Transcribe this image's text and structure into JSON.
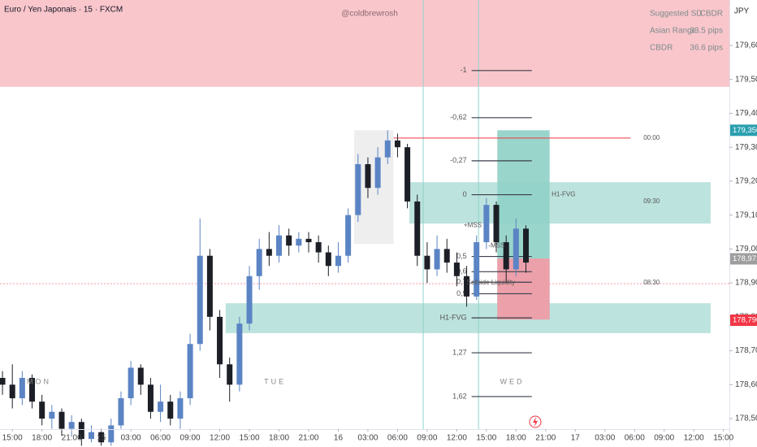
{
  "header": {
    "title": "Euro / Yen Japonais · 15 · FXCM",
    "watermark": "@coldbrewrosh",
    "currency": "JPY"
  },
  "info_table": [
    [
      "Suggested SD",
      "CBDR"
    ],
    [
      "Asian Range",
      "33.5 pips"
    ],
    [
      "CBDR",
      "36.6 pips"
    ]
  ],
  "chart_data": {
    "type": "candlestick",
    "up_color": "#5b84c4",
    "down_color": "#1c1f26",
    "x": [
      -1,
      0,
      1,
      2,
      3,
      4,
      5,
      6,
      7,
      8,
      9,
      10,
      11,
      12,
      13,
      14,
      15,
      16,
      17,
      18,
      19,
      20,
      21,
      22,
      23,
      24,
      25,
      26,
      27,
      28,
      29,
      30,
      31,
      32,
      33,
      34,
      35,
      36,
      37,
      38,
      39,
      40,
      41,
      42,
      43,
      44,
      45,
      46,
      47,
      48,
      49,
      50,
      51,
      52
    ],
    "open": [
      178.62,
      178.6,
      178.56,
      178.62,
      178.55,
      178.5,
      178.52,
      178.47,
      178.49,
      178.44,
      178.46,
      178.43,
      178.48,
      178.56,
      178.65,
      178.6,
      178.52,
      178.55,
      178.5,
      178.56,
      178.72,
      178.98,
      178.8,
      178.66,
      178.6,
      178.78,
      178.92,
      179.0,
      178.98,
      179.04,
      179.01,
      179.03,
      179.02,
      178.99,
      178.95,
      178.98,
      179.1,
      179.25,
      179.18,
      179.27,
      179.32,
      179.3,
      179.14,
      178.98,
      178.94,
      179.0,
      178.96,
      178.92,
      178.86,
      179.02,
      179.13,
      179.02,
      178.94,
      179.06
    ],
    "high": [
      178.64,
      178.66,
      178.64,
      178.63,
      178.57,
      178.54,
      178.53,
      178.51,
      178.5,
      178.48,
      178.47,
      178.5,
      178.58,
      178.67,
      178.66,
      178.62,
      178.6,
      178.57,
      178.58,
      178.75,
      179.09,
      179.0,
      178.82,
      178.68,
      178.8,
      178.95,
      179.03,
      179.05,
      179.07,
      179.06,
      179.05,
      179.05,
      179.04,
      179.01,
      179.02,
      179.12,
      179.28,
      179.27,
      179.3,
      179.35,
      179.34,
      179.31,
      179.16,
      179.02,
      179.04,
      179.03,
      178.99,
      178.95,
      179.04,
      179.15,
      179.14,
      179.04,
      179.09,
      179.07
    ],
    "low": [
      178.57,
      178.53,
      178.54,
      178.53,
      178.48,
      178.47,
      178.45,
      178.45,
      178.42,
      178.43,
      178.42,
      178.42,
      178.47,
      178.54,
      178.57,
      178.5,
      178.49,
      178.48,
      178.47,
      178.54,
      178.7,
      178.76,
      178.62,
      178.55,
      178.58,
      178.76,
      178.88,
      178.95,
      178.96,
      178.98,
      178.99,
      178.99,
      178.96,
      178.92,
      178.93,
      178.96,
      179.08,
      179.15,
      179.16,
      179.25,
      179.27,
      179.12,
      178.95,
      178.9,
      178.92,
      178.93,
      178.89,
      178.83,
      178.85,
      179.0,
      178.99,
      178.9,
      178.92,
      178.93
    ],
    "close": [
      178.6,
      178.56,
      178.62,
      178.55,
      178.5,
      178.52,
      178.47,
      178.49,
      178.44,
      178.46,
      178.43,
      178.48,
      178.56,
      178.65,
      178.6,
      178.52,
      178.55,
      178.5,
      178.56,
      178.72,
      178.98,
      178.8,
      178.66,
      178.6,
      178.78,
      178.92,
      179.0,
      178.98,
      179.04,
      179.01,
      179.03,
      179.02,
      178.99,
      178.95,
      178.98,
      179.1,
      179.25,
      179.18,
      179.27,
      179.32,
      179.3,
      179.14,
      178.98,
      178.94,
      179.0,
      178.96,
      178.92,
      178.86,
      179.02,
      179.13,
      179.02,
      178.94,
      179.06,
      178.96
    ],
    "xlim": [
      -1.25,
      72.6
    ],
    "xticks": [
      {
        "value": 0,
        "label": "15:00"
      },
      {
        "value": 3,
        "label": "18:00"
      },
      {
        "value": 6,
        "label": "21:00"
      },
      {
        "value": 9,
        "label": "15"
      },
      {
        "value": 12,
        "label": "03:00"
      },
      {
        "value": 15,
        "label": "06:00"
      },
      {
        "value": 18,
        "label": "09:00"
      },
      {
        "value": 21,
        "label": "12:00"
      },
      {
        "value": 24,
        "label": "15:00"
      },
      {
        "value": 27,
        "label": "18:00"
      },
      {
        "value": 30,
        "label": "21:00"
      },
      {
        "value": 33,
        "label": "16"
      },
      {
        "value": 36,
        "label": "03:00"
      },
      {
        "value": 39,
        "label": "06:00"
      },
      {
        "value": 42,
        "label": "09:00"
      },
      {
        "value": 45,
        "label": "12:00"
      },
      {
        "value": 48,
        "label": "15:00"
      },
      {
        "value": 51,
        "label": "18:00"
      },
      {
        "value": 54,
        "label": "21:00"
      },
      {
        "value": 57,
        "label": "17"
      },
      {
        "value": 60,
        "label": "03:00"
      },
      {
        "value": 63,
        "label": "06:00"
      },
      {
        "value": 66,
        "label": "09:00"
      },
      {
        "value": 69,
        "label": "12:00"
      },
      {
        "value": 72,
        "label": "15:00"
      }
    ],
    "ylim": [
      178.469,
      179.734
    ],
    "yticks": [
      {
        "value": 179.6,
        "label": "179,600"
      },
      {
        "value": 179.5,
        "label": "179,500"
      },
      {
        "value": 179.4,
        "label": "179,400"
      },
      {
        "value": 179.3,
        "label": "179,300"
      },
      {
        "value": 179.2,
        "label": "179,200"
      },
      {
        "value": 179.1,
        "label": "179,100"
      },
      {
        "value": 179.0,
        "label": "179,000"
      },
      {
        "value": 178.9,
        "label": "178,900"
      },
      {
        "value": 178.8,
        "label": "178,800"
      },
      {
        "value": 178.7,
        "label": "178,700"
      },
      {
        "value": 178.6,
        "label": "178,600"
      },
      {
        "value": 178.5,
        "label": "178,500"
      }
    ],
    "price_labels": [
      {
        "value": 179.35,
        "label": "179,350",
        "color": "#2a9fb0"
      },
      {
        "value": 178.971,
        "label": "178,971",
        "color": "#9e9e9e"
      },
      {
        "value": 178.79,
        "label": "178,790",
        "color": "#f23645"
      }
    ],
    "zones": [
      {
        "from": -1.25,
        "to": 72.6,
        "low": 179.478,
        "high": 179.734,
        "color": "#f8c0c6"
      },
      {
        "from": 34.6,
        "to": 38.6,
        "low": 179.015,
        "high": 179.35,
        "color": "#ececec"
      },
      {
        "from": 40.2,
        "to": 70.7,
        "low": 179.075,
        "high": 179.197,
        "color": "#b6e0da"
      },
      {
        "from": 21.6,
        "to": 70.7,
        "low": 178.752,
        "high": 178.84,
        "color": "#b6e0da"
      },
      {
        "from": 49.1,
        "to": 54.4,
        "low": 178.792,
        "high": 179.35,
        "color": "#8fd0c6"
      },
      {
        "from": 49.1,
        "to": 54.4,
        "low": 178.792,
        "high": 178.972,
        "color": "#f49aa6"
      }
    ],
    "fib_from": 46.5,
    "fib_to": 52.6,
    "fib_levels": [
      {
        "label": "-1",
        "value": 179.526
      },
      {
        "label": "-0,62",
        "value": 179.387
      },
      {
        "label": "-0,27",
        "value": 179.26
      },
      {
        "label": "0",
        "value": 179.16
      },
      {
        "label": "0,5",
        "value": 178.978
      },
      {
        "label": "0,6",
        "value": 178.933
      },
      {
        "label": "0,7",
        "value": 178.902
      },
      {
        "label": "0,9",
        "value": 178.868
      },
      {
        "label": "H1-FVG",
        "value": 178.797
      },
      {
        "label": "1,27",
        "value": 178.694
      },
      {
        "label": "1,62",
        "value": 178.565
      }
    ],
    "hlines": [
      {
        "value": 179.327,
        "from": 38.6,
        "to": 62.6,
        "color": "#f23645",
        "style": "solid"
      },
      {
        "value": 178.898,
        "from": -1.25,
        "to": 72.6,
        "color": "#f59aa5",
        "style": "dotted"
      }
    ],
    "vlines": [
      {
        "x": 41.6,
        "color": "#8fd3cc"
      },
      {
        "x": 47.2,
        "color": "#8fd3cc"
      }
    ],
    "annotations": [
      {
        "text": "00:00",
        "x": 63.9,
        "value": 179.327
      },
      {
        "text": "09:30",
        "x": 63.9,
        "value": 179.14
      },
      {
        "text": "08:30",
        "x": 63.9,
        "value": 178.9
      },
      {
        "text": "H1-FVG",
        "x": 54.6,
        "value": 179.16
      },
      {
        "text": "+MSS",
        "x": 45.7,
        "value": 179.07
      },
      {
        "text": "-MSS",
        "x": 48.2,
        "value": 179.01
      },
      {
        "text": "Sellside Liquidity",
        "x": 46.0,
        "value": 178.9
      }
    ],
    "session_labels": [
      {
        "text": "MON",
        "x": 2.7,
        "value": 178.608
      },
      {
        "text": "TUE",
        "x": 26.6,
        "value": 178.608
      },
      {
        "text": "WED",
        "x": 50.6,
        "value": 178.608
      }
    ]
  }
}
